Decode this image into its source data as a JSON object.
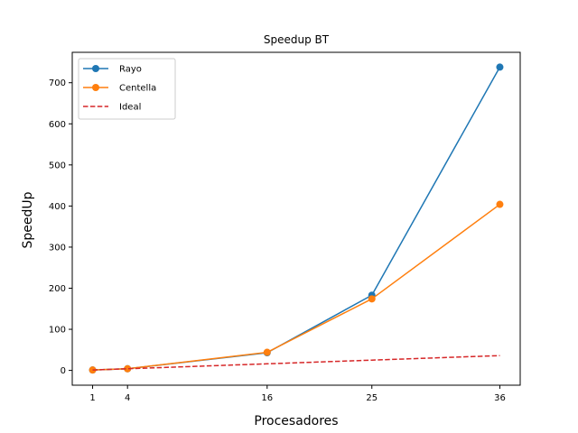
{
  "chart_data": {
    "type": "line",
    "title": "Speedup BT",
    "xlabel": "Procesadores",
    "ylabel": "SpeedUp",
    "x": [
      1,
      4,
      16,
      25,
      36
    ],
    "xticks": [
      1,
      4,
      16,
      25,
      36
    ],
    "yticks": [
      0,
      100,
      200,
      300,
      400,
      500,
      600,
      700
    ],
    "xlim": [
      -0.75,
      37.75
    ],
    "ylim": [
      -36,
      774
    ],
    "grid": false,
    "legend_position": "top-left",
    "series": [
      {
        "name": "Rayo",
        "values": [
          1,
          4,
          43,
          183,
          738
        ],
        "color": "#1f77b4",
        "style": "solid",
        "marker": "circle"
      },
      {
        "name": "Centella",
        "values": [
          1,
          4,
          44,
          174,
          404
        ],
        "color": "#ff7f0e",
        "style": "solid",
        "marker": "circle"
      },
      {
        "name": "Ideal",
        "values": [
          1,
          4,
          16,
          25,
          36
        ],
        "color": "#d62728",
        "style": "dashed",
        "marker": "none"
      }
    ]
  }
}
